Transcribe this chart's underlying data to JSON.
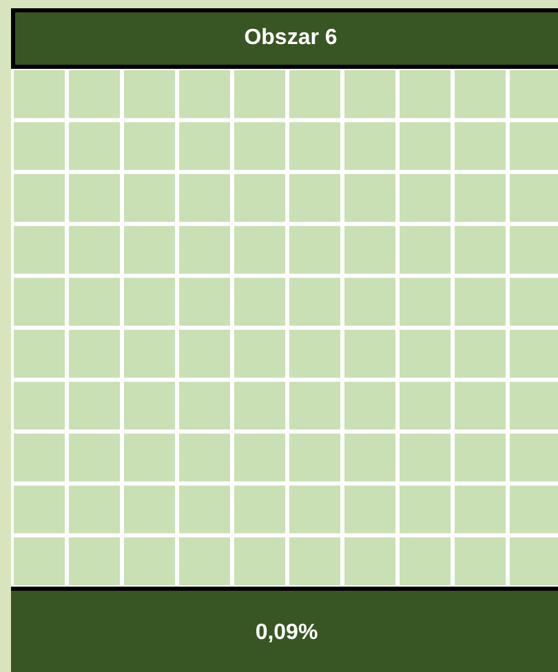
{
  "chart_data": {
    "type": "other",
    "title": "Obszar 6",
    "values": [
      0.09
    ],
    "value_labels": [
      "0,09%"
    ]
  }
}
